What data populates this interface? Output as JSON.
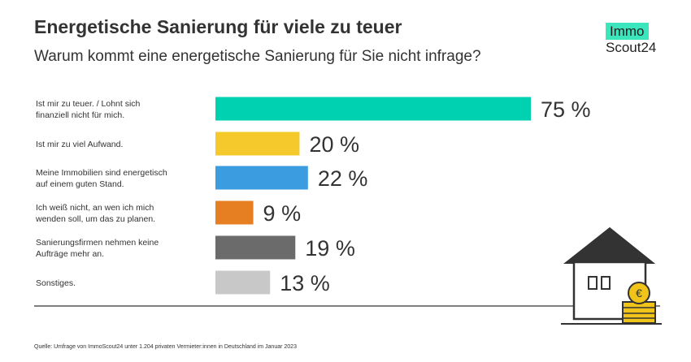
{
  "header": {
    "title": "Energetische Sanierung für viele zu teuer",
    "subtitle": "Warum kommt eine energetische Sanierung für Sie nicht infrage?"
  },
  "logo": {
    "line1": "Immo",
    "line2": "Scout24",
    "accent": "#3ce6bc"
  },
  "source": "Quelle: Umfrage von ImmoScout24 unter 1.204 privaten Vermieter:innen in Deutschland im Januar 2023",
  "chart_data": {
    "type": "bar",
    "orientation": "horizontal",
    "title": "Energetische Sanierung für viele zu teuer",
    "subtitle": "Warum kommt eine energetische Sanierung für Sie nicht infrage?",
    "unit": "%",
    "xlim": [
      0,
      100
    ],
    "grid": false,
    "categories": [
      [
        "Ist mir zu teuer. / Lohnt sich",
        "finanziell nicht für mich."
      ],
      [
        "Ist mir zu viel Aufwand."
      ],
      [
        "Meine Immobilien sind energetisch",
        "auf einem guten Stand."
      ],
      [
        "Ich weiß nicht, an wen ich mich",
        "wenden soll, um das zu planen."
      ],
      [
        "Sanierungsfirmen nehmen keine",
        "Aufträge mehr an."
      ],
      [
        "Sonstiges."
      ]
    ],
    "values": [
      75,
      20,
      22,
      9,
      19,
      13
    ],
    "value_labels": [
      "75 %",
      "20 %",
      "22 %",
      "9 %",
      "19 %",
      "13 %"
    ],
    "colors": [
      "#00d1b0",
      "#f5c82c",
      "#3b9de0",
      "#e67e22",
      "#6b6b6b",
      "#c8c8c8"
    ]
  }
}
